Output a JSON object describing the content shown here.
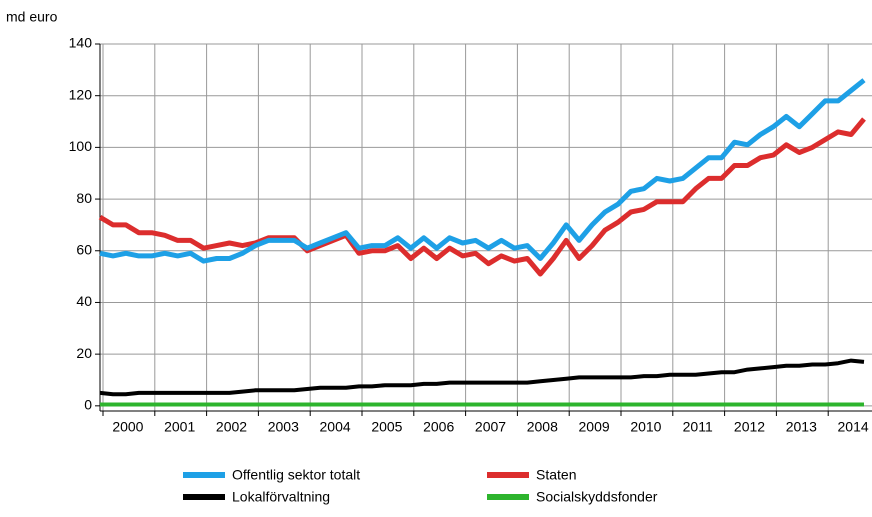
{
  "chart_data": {
    "type": "line",
    "y_label": "md euro",
    "categories": [
      "2000",
      null,
      null,
      null,
      "2001",
      null,
      null,
      null,
      "2002",
      null,
      null,
      null,
      "2003",
      null,
      null,
      null,
      "2004",
      null,
      null,
      null,
      "2005",
      null,
      null,
      null,
      "2006",
      null,
      null,
      null,
      "2007",
      null,
      null,
      null,
      "2008",
      null,
      null,
      null,
      "2009",
      null,
      null,
      null,
      "2010",
      null,
      null,
      null,
      "2011",
      null,
      null,
      null,
      "2012",
      null,
      null,
      null,
      "2013",
      null,
      null,
      null,
      "2014",
      null,
      null,
      null
    ],
    "series": [
      {
        "name": "Offentlig sektor totalt",
        "color": "#1ea0e6",
        "values": [
          59,
          58,
          59,
          58,
          58,
          59,
          58,
          59,
          56,
          57,
          57,
          59,
          62,
          64,
          64,
          64,
          61,
          63,
          65,
          67,
          61,
          62,
          62,
          65,
          61,
          65,
          61,
          65,
          63,
          64,
          61,
          64,
          61,
          62,
          57,
          63,
          70,
          64,
          70,
          75,
          78,
          83,
          84,
          88,
          87,
          88,
          92,
          96,
          96,
          102,
          101,
          105,
          108,
          112,
          108,
          113,
          118,
          118,
          122,
          126
        ]
      },
      {
        "name": "Staten",
        "color": "#dc2d2d",
        "values": [
          73,
          70,
          70,
          67,
          67,
          66,
          64,
          64,
          61,
          62,
          63,
          62,
          63,
          65,
          65,
          65,
          60,
          62,
          64,
          66,
          59,
          60,
          60,
          62,
          57,
          61,
          57,
          61,
          58,
          59,
          55,
          58,
          56,
          57,
          51,
          57,
          64,
          57,
          62,
          68,
          71,
          75,
          76,
          79,
          79,
          79,
          84,
          88,
          88,
          93,
          93,
          96,
          97,
          101,
          98,
          100,
          103,
          106,
          105,
          111
        ]
      },
      {
        "name": "Lokalförvaltning",
        "color": "#000000",
        "values": [
          5,
          4.5,
          4.5,
          5,
          5,
          5,
          5,
          5,
          5,
          5,
          5,
          5.5,
          6,
          6,
          6,
          6,
          6.5,
          7,
          7,
          7,
          7.5,
          7.5,
          8,
          8,
          8,
          8.5,
          8.5,
          9,
          9,
          9,
          9,
          9,
          9,
          9,
          9.5,
          10,
          10.5,
          11,
          11,
          11,
          11,
          11,
          11.5,
          11.5,
          12,
          12,
          12,
          12.5,
          13,
          13,
          14,
          14.5,
          15,
          15.5,
          15.5,
          16,
          16,
          16.5,
          17.5,
          17
        ]
      },
      {
        "name": "Socialskyddsfonder",
        "color": "#2db42d",
        "values": [
          0.5,
          0.5,
          0.5,
          0.5,
          0.5,
          0.5,
          0.5,
          0.5,
          0.5,
          0.5,
          0.5,
          0.5,
          0.5,
          0.5,
          0.5,
          0.5,
          0.5,
          0.5,
          0.5,
          0.5,
          0.5,
          0.5,
          0.5,
          0.5,
          0.5,
          0.5,
          0.5,
          0.5,
          0.5,
          0.5,
          0.5,
          0.5,
          0.5,
          0.5,
          0.5,
          0.5,
          0.5,
          0.5,
          0.5,
          0.5,
          0.5,
          0.5,
          0.5,
          0.5,
          0.5,
          0.5,
          0.5,
          0.5,
          0.5,
          0.5,
          0.5,
          0.5,
          0.5,
          0.5,
          0.5,
          0.5,
          0.5,
          0.5,
          0.5,
          0.5
        ]
      }
    ],
    "ylim": [
      -2,
      140
    ],
    "yticks": [
      0,
      20,
      40,
      60,
      80,
      100,
      120,
      140
    ],
    "grid": true
  }
}
